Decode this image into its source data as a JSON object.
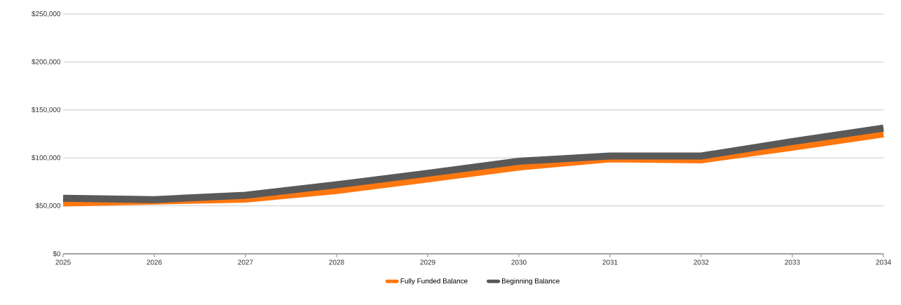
{
  "chart_data": {
    "type": "line",
    "categories": [
      "2025",
      "2026",
      "2027",
      "2028",
      "2029",
      "2030",
      "2031",
      "2032",
      "2033",
      "2034"
    ],
    "series": [
      {
        "name": "Fully Funded Balance",
        "color": "#ff770f",
        "values": [
          53000,
          55000,
          57000,
          66000,
          78000,
          90500,
          99000,
          98000,
          111000,
          125000
        ]
      },
      {
        "name": "Beginning Balance",
        "color": "#595959",
        "values": [
          58000,
          56500,
          61000,
          72000,
          84000,
          96500,
          102000,
          102000,
          117000,
          131000
        ]
      }
    ],
    "ylim": [
      0,
      250000
    ],
    "yticks": [
      {
        "value": 0,
        "label": "$0"
      },
      {
        "value": 50000,
        "label": "$50,000"
      },
      {
        "value": 100000,
        "label": "$100,000"
      },
      {
        "value": 150000,
        "label": "$150,000"
      },
      {
        "value": 200000,
        "label": "$200,000"
      },
      {
        "value": 250000,
        "label": "$250,000"
      }
    ],
    "grid": "y",
    "legend": "bottom",
    "marker": "none",
    "line_style": "solid"
  }
}
